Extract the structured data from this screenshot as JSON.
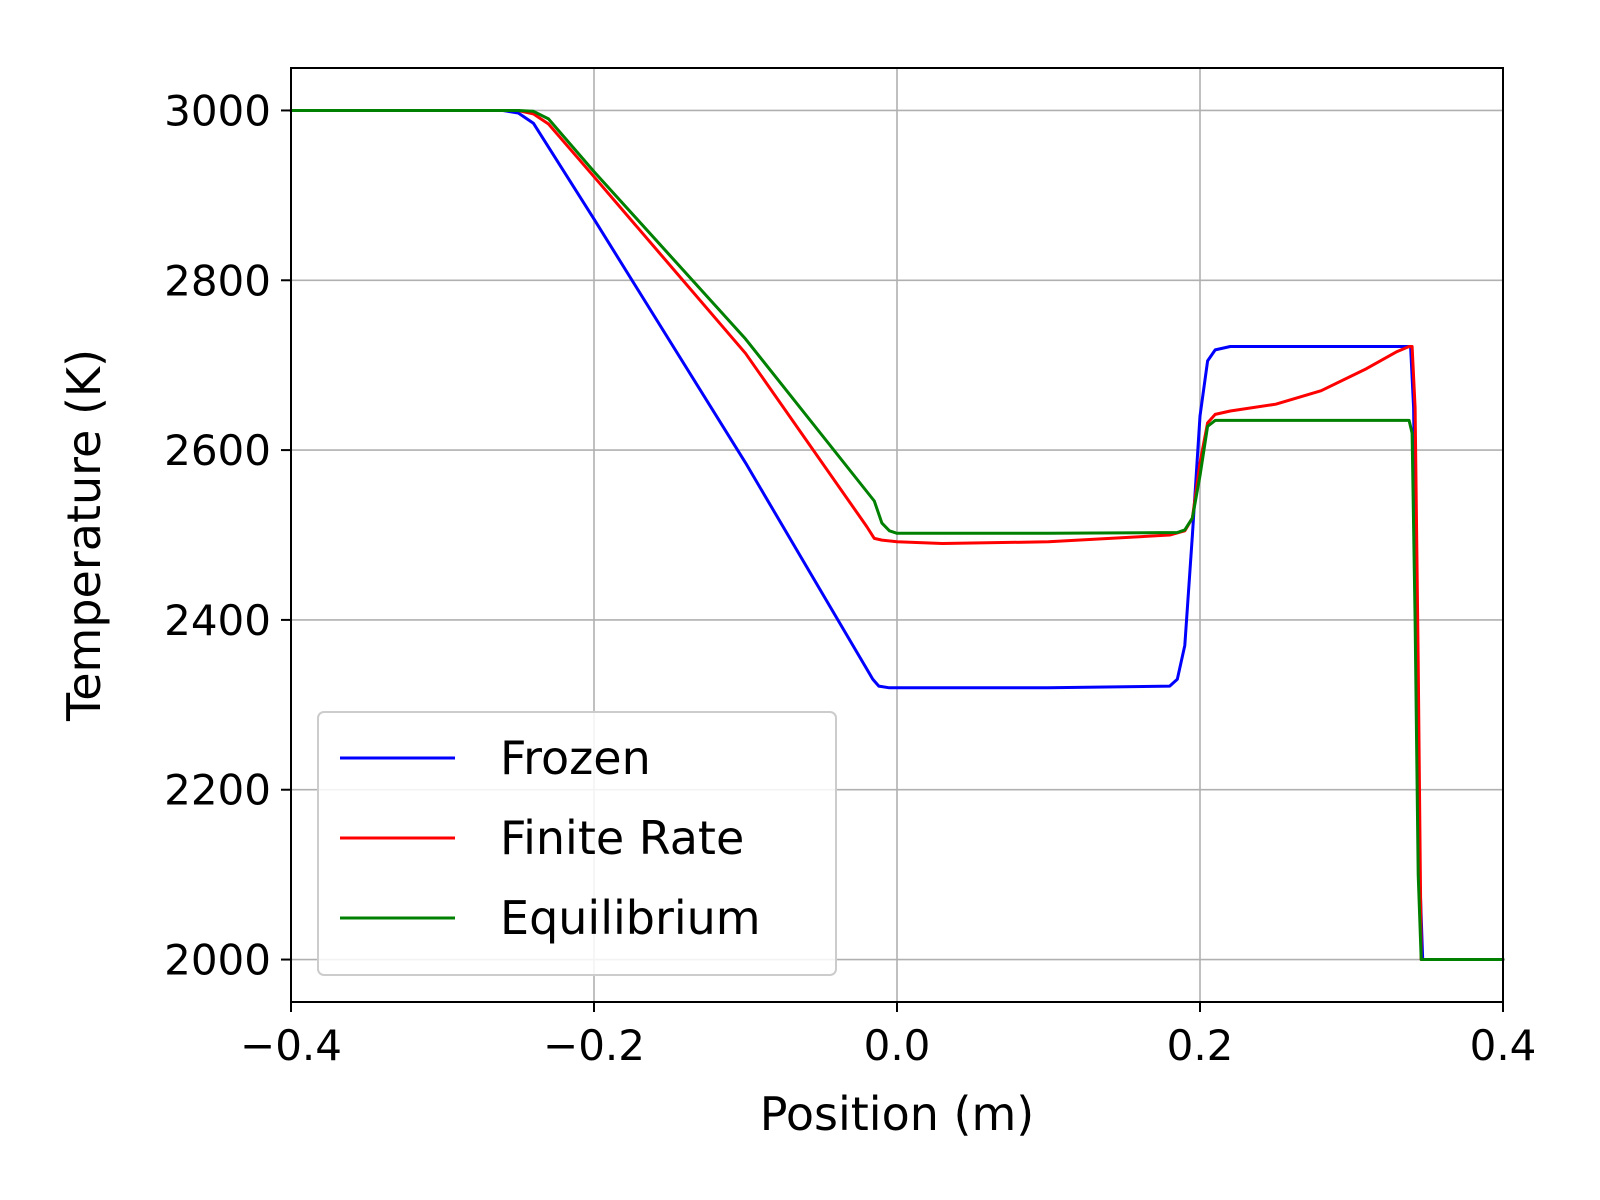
{
  "chart_data": {
    "type": "line",
    "title": "",
    "xlabel": "Position (m)",
    "ylabel": "Temperature (K)",
    "xlim": [
      -0.4,
      0.4
    ],
    "ylim": [
      1950,
      3050
    ],
    "xticks": [
      -0.4,
      -0.2,
      0.0,
      0.2,
      0.4
    ],
    "xtick_labels": [
      "−0.4",
      "−0.2",
      "0.0",
      "0.2",
      "0.4"
    ],
    "yticks": [
      2000,
      2200,
      2400,
      2600,
      2800,
      3000
    ],
    "ytick_labels": [
      "2000",
      "2200",
      "2400",
      "2600",
      "2800",
      "3000"
    ],
    "grid": true,
    "legend_position": "lower-left",
    "series": [
      {
        "name": "Frozen",
        "color": "#0000ff",
        "x": [
          -0.4,
          -0.26,
          -0.25,
          -0.24,
          -0.2,
          -0.1,
          -0.016,
          -0.012,
          -0.005,
          0.1,
          0.18,
          0.185,
          0.19,
          0.195,
          0.2,
          0.205,
          0.21,
          0.22,
          0.3,
          0.337,
          0.339,
          0.341,
          0.343,
          0.345,
          0.347,
          0.36,
          0.4
        ],
        "y": [
          3000,
          3000,
          2997,
          2985,
          2872,
          2585,
          2330,
          2322,
          2320,
          2320,
          2322,
          2330,
          2370,
          2500,
          2640,
          2705,
          2718,
          2722,
          2722,
          2722,
          2722,
          2650,
          2400,
          2100,
          2000,
          2000,
          2000
        ]
      },
      {
        "name": "Finite Rate",
        "color": "#ff0000",
        "x": [
          -0.4,
          -0.25,
          -0.24,
          -0.23,
          -0.2,
          -0.1,
          -0.02,
          -0.015,
          -0.01,
          0.0,
          0.03,
          0.1,
          0.18,
          0.19,
          0.195,
          0.2,
          0.205,
          0.21,
          0.22,
          0.25,
          0.28,
          0.31,
          0.33,
          0.338,
          0.34,
          0.342,
          0.344,
          0.346,
          0.36,
          0.4
        ],
        "y": [
          3000,
          3000,
          2996,
          2984,
          2922,
          2714,
          2510,
          2496,
          2494,
          2492,
          2490,
          2492,
          2500,
          2505,
          2520,
          2585,
          2632,
          2642,
          2646,
          2654,
          2670,
          2696,
          2716,
          2722,
          2722,
          2650,
          2350,
          2000,
          2000,
          2000
        ]
      },
      {
        "name": "Equilibrium",
        "color": "#008000",
        "x": [
          -0.4,
          -0.25,
          -0.24,
          -0.23,
          -0.2,
          -0.1,
          -0.015,
          -0.01,
          -0.005,
          0.0,
          0.1,
          0.185,
          0.19,
          0.195,
          0.2,
          0.205,
          0.21,
          0.22,
          0.3,
          0.338,
          0.34,
          0.342,
          0.344,
          0.346,
          0.36,
          0.4
        ],
        "y": [
          3000,
          3000,
          2999,
          2990,
          2928,
          2731,
          2540,
          2514,
          2505,
          2502,
          2502,
          2503,
          2506,
          2520,
          2570,
          2628,
          2635,
          2635,
          2635,
          2635,
          2620,
          2400,
          2100,
          2000,
          2000,
          2000
        ]
      }
    ]
  }
}
